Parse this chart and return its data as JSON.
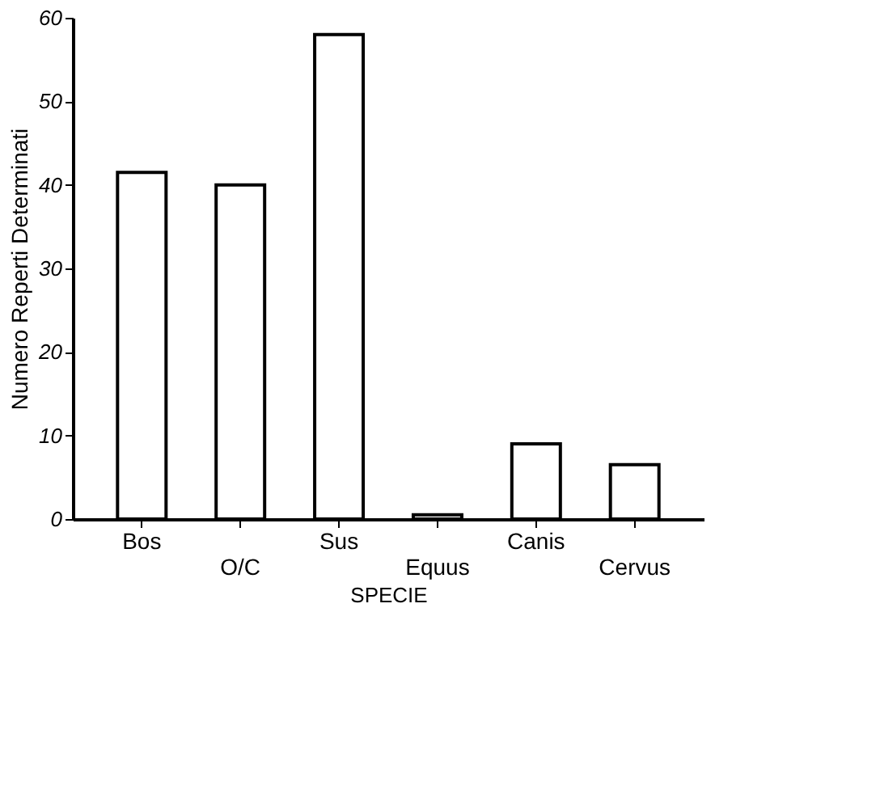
{
  "chart_data": {
    "type": "bar",
    "xlabel": "SPECIE",
    "ylabel": "Numero Reperti Determinati",
    "categories": [
      "Bos",
      "O/C",
      "Sus",
      "Equus",
      "Canis",
      "Cervus"
    ],
    "values": [
      41.5,
      40,
      58,
      0.5,
      9,
      6.5
    ],
    "color": "#ffffff",
    "ylim": [
      0,
      60
    ],
    "yticks": [
      0,
      10,
      20,
      30,
      40,
      50,
      60
    ],
    "grid": false
  }
}
